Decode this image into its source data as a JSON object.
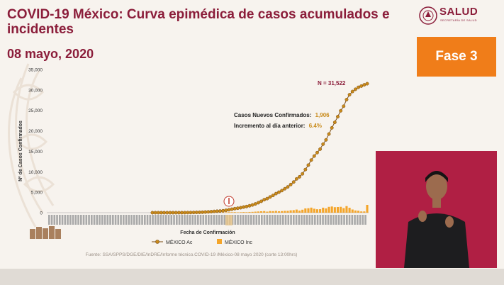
{
  "header": {
    "title": "COVID-19 México: Curva epimédica de casos acumulados e incidentes",
    "date": "08 mayo, 2020"
  },
  "logo": {
    "text": "SALUD",
    "subtitle": "SECRETARÍA DE SALUD"
  },
  "phase_badge": "Fase 3",
  "source": "Fuente: SSA/SPPS/DGE/DIE/InDRE/Informe técnico.COVID-19 /México-08 mayo 2020 (corte 13:00hrs)",
  "colors": {
    "brand": "#8b1d3a",
    "accent": "#f07d19",
    "cumulative_marker": "#c88a1a",
    "cumulative_line": "#7a4a10",
    "incident_bar": "#f4a52a"
  },
  "chart_data": {
    "type": "line",
    "title": "",
    "xlabel": "Fecha de Confirmación",
    "ylabel": "Nº de Casos Confirmados",
    "ylim": [
      0,
      35000
    ],
    "yticks": [
      "0",
      "5,000",
      "10,000",
      "15,000",
      "20,000",
      "25,000",
      "30,000",
      "35,000"
    ],
    "grid": false,
    "legend_position": "bottom",
    "x": [
      1,
      2,
      3,
      4,
      5,
      6,
      7,
      8,
      9,
      10,
      11,
      12,
      13,
      14,
      15,
      16,
      17,
      18,
      19,
      20,
      21,
      22,
      23,
      24,
      25,
      26,
      27,
      28,
      29,
      30,
      31,
      32,
      33,
      34,
      35,
      36,
      37,
      38,
      39,
      40,
      41,
      42,
      43,
      44,
      45,
      46,
      47,
      48,
      49,
      50,
      51,
      52,
      53,
      54,
      55,
      56,
      57,
      58,
      59,
      60,
      61,
      62,
      63,
      64,
      65,
      66,
      67,
      68,
      69,
      70,
      71,
      72,
      73,
      74
    ],
    "series": [
      {
        "name": "MÉXICO Ac",
        "type": "line",
        "values": [
          1,
          4,
          5,
          5,
          5,
          5,
          6,
          7,
          7,
          7,
          8,
          12,
          26,
          41,
          53,
          82,
          93,
          118,
          164,
          203,
          251,
          316,
          367,
          405,
          475,
          585,
          717,
          848,
          993,
          1094,
          1215,
          1378,
          1510,
          1688,
          1890,
          2143,
          2439,
          2785,
          3181,
          3441,
          3844,
          4219,
          4661,
          5014,
          5399,
          5847,
          6297,
          6875,
          7497,
          8261,
          8772,
          9501,
          10544,
          11633,
          12872,
          13842,
          14677,
          15529,
          16752,
          17799,
          19224,
          20739,
          22088,
          23471,
          24905,
          26025,
          27634,
          28839,
          29616,
          30160,
          30636,
          30943,
          31252,
          31522
        ]
      },
      {
        "name": "MÉXICO Inc",
        "type": "bar",
        "values": [
          1,
          3,
          1,
          0,
          0,
          0,
          1,
          1,
          0,
          0,
          1,
          4,
          14,
          15,
          12,
          29,
          11,
          25,
          46,
          39,
          48,
          65,
          51,
          38,
          70,
          110,
          132,
          131,
          145,
          101,
          121,
          163,
          132,
          178,
          202,
          253,
          296,
          346,
          396,
          260,
          403,
          375,
          442,
          353,
          385,
          448,
          450,
          578,
          622,
          764,
          511,
          729,
          1043,
          1089,
          1239,
          970,
          835,
          852,
          1223,
          1047,
          1425,
          1515,
          1349,
          1383,
          1434,
          1120,
          1609,
          1205,
          777,
          544,
          476,
          307,
          309,
          1906
        ]
      }
    ],
    "annotations": [
      {
        "text": "N = 31,522"
      },
      {
        "label": "Casos Nuevos Confirmados:",
        "value": "1,906"
      },
      {
        "label": "Incremento al día anterior:",
        "value": "6.4%"
      }
    ]
  }
}
